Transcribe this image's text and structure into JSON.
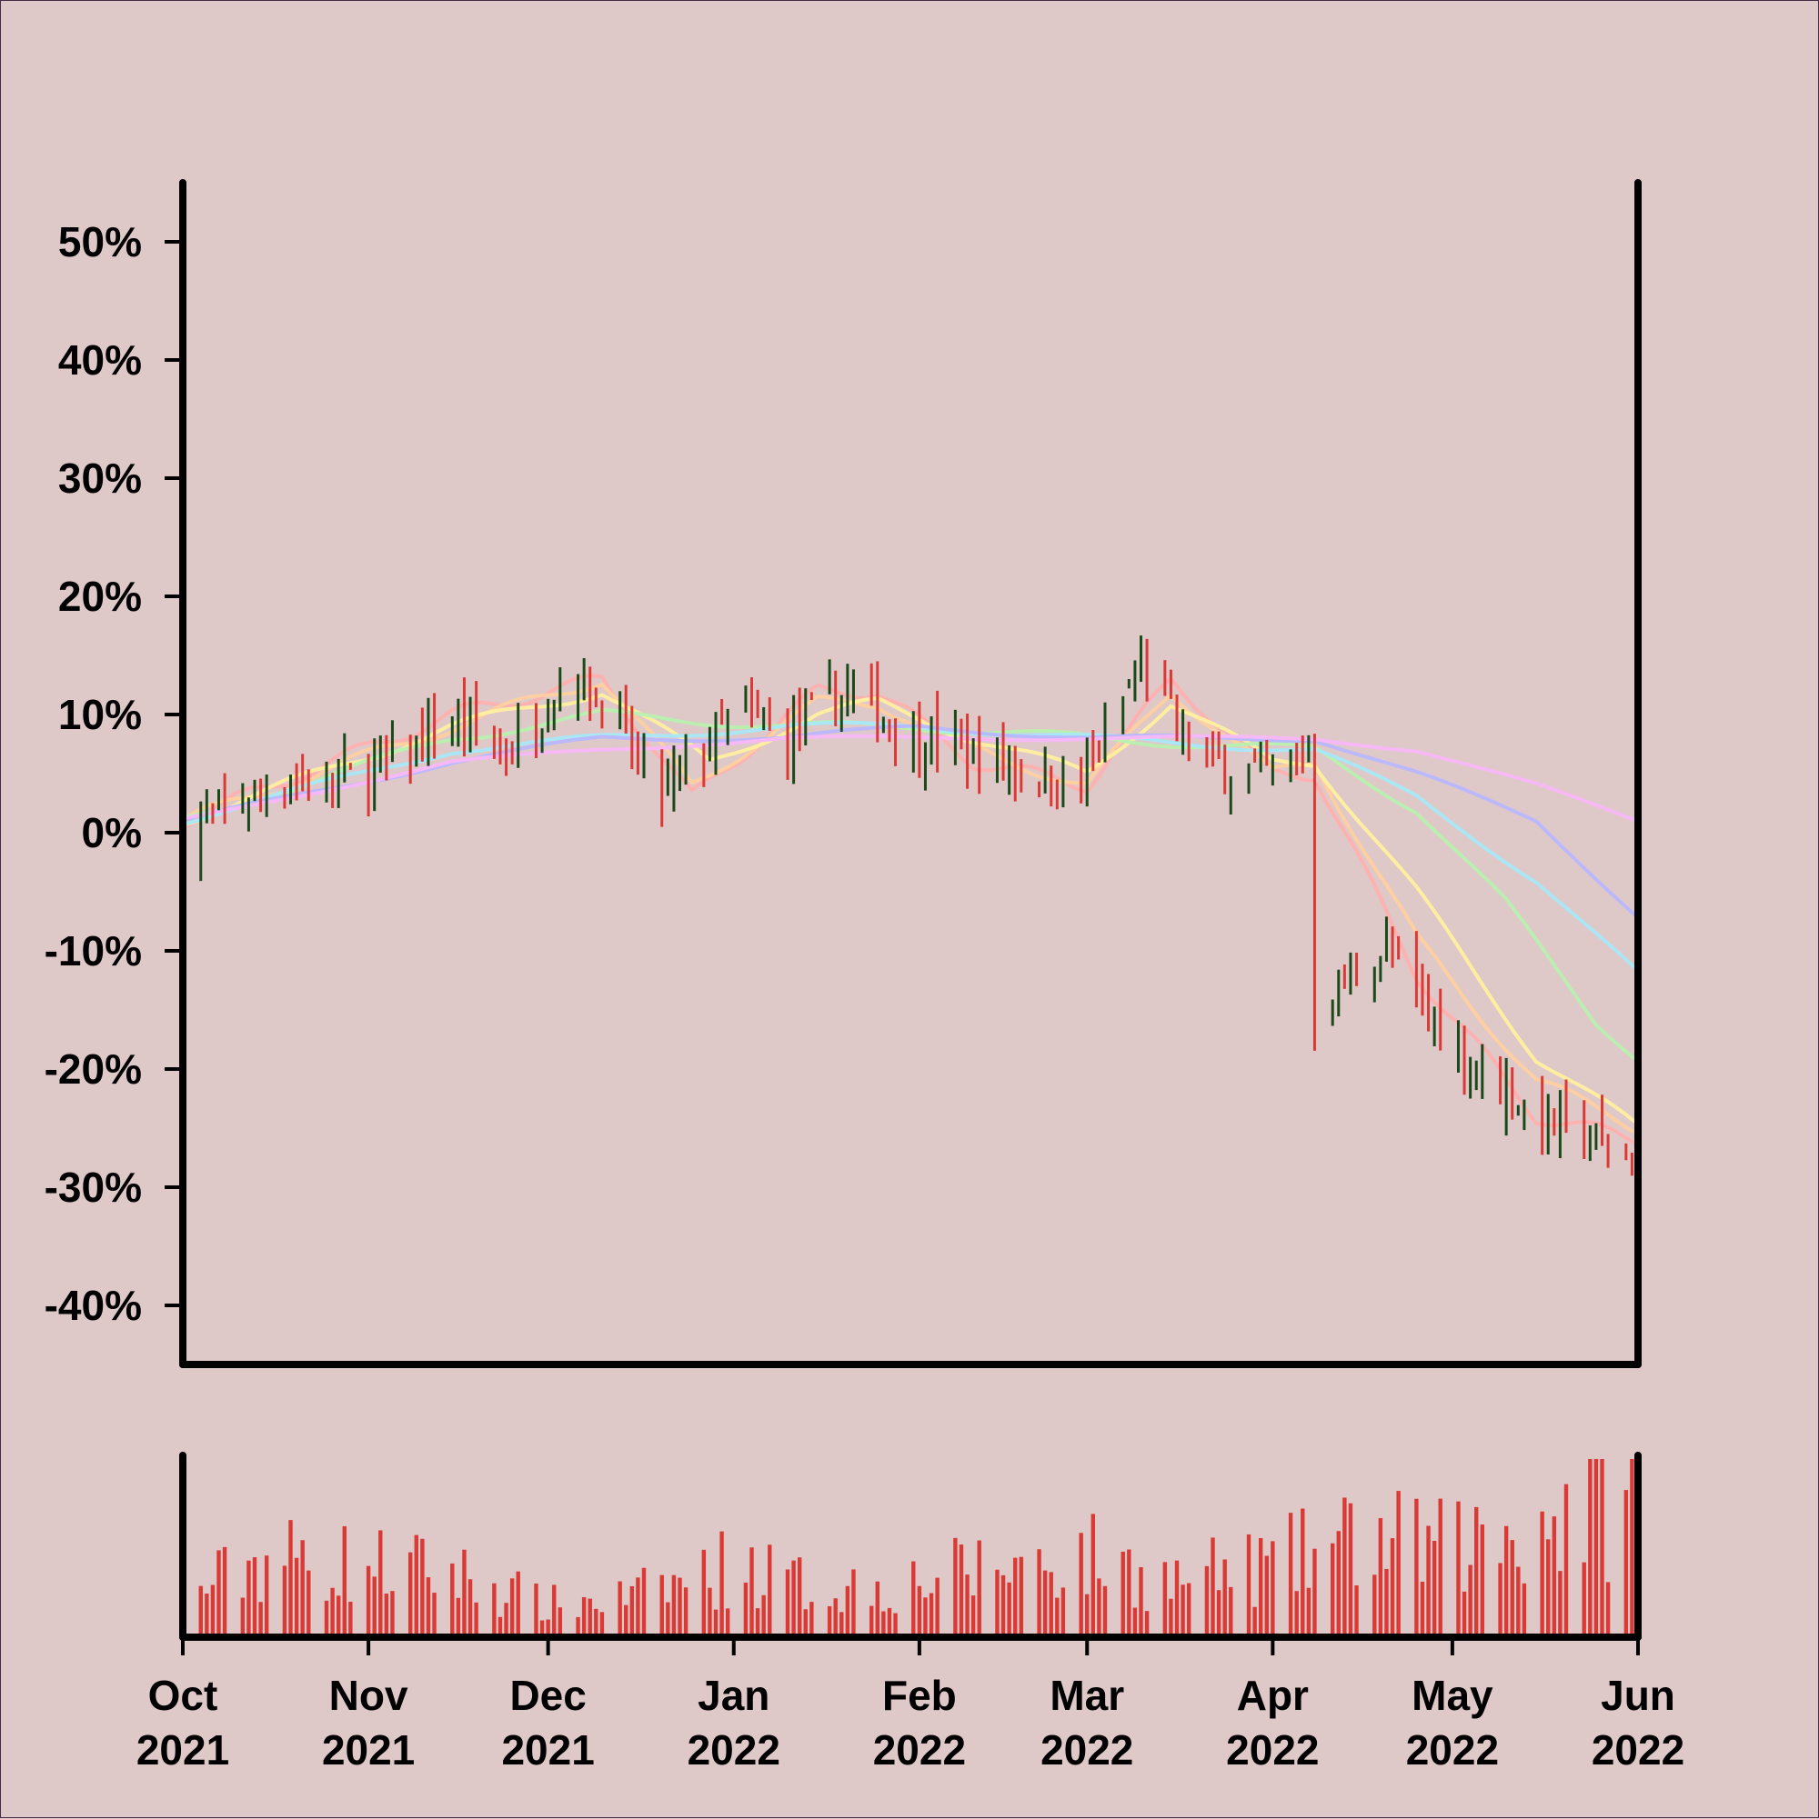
{
  "colors": {
    "background": "#dfc8c8",
    "axis": "#000000",
    "up_bar": "#1a4a1a",
    "down_bar": "#d93a35",
    "volume": "#d93a35",
    "ma_lines": [
      "#ffb0b0",
      "#ffd0a0",
      "#fff0a0",
      "#b8f0b0",
      "#a8e8f8",
      "#b8b8ff",
      "#f8b8f8"
    ]
  },
  "chart_data": {
    "type": "ohlc",
    "title": "",
    "xlabel": "",
    "ylabel": "",
    "y_unit": "percent change",
    "ylim": [
      -45,
      55
    ],
    "yticks": [
      "50%",
      "40%",
      "30%",
      "20%",
      "10%",
      "0%",
      "-10%",
      "-20%",
      "-30%",
      "-40%"
    ],
    "ytick_values": [
      50,
      40,
      30,
      20,
      10,
      0,
      -10,
      -20,
      -30,
      -40
    ],
    "xlim": [
      "2021-10-01",
      "2022-06-01"
    ],
    "xticks": [
      {
        "month": "Oct",
        "year": "2021",
        "date": "2021-10-01"
      },
      {
        "month": "Nov",
        "year": "2021",
        "date": "2021-11-01"
      },
      {
        "month": "Dec",
        "year": "2021",
        "date": "2021-12-01"
      },
      {
        "month": "Jan",
        "year": "2022",
        "date": "2022-01-01"
      },
      {
        "month": "Feb",
        "year": "2022",
        "date": "2022-02-01"
      },
      {
        "month": "Mar",
        "year": "2022",
        "date": "2022-03-01"
      },
      {
        "month": "Apr",
        "year": "2022",
        "date": "2022-04-01"
      },
      {
        "month": "May",
        "year": "2022",
        "date": "2022-05-01"
      },
      {
        "month": "Jun",
        "year": "2022",
        "date": "2022-06-01"
      }
    ],
    "close_trend": [
      {
        "date": "2021-10-01",
        "close": 0
      },
      {
        "date": "2021-10-15",
        "close": 4
      },
      {
        "date": "2021-11-01",
        "close": 5
      },
      {
        "date": "2021-11-15",
        "close": 9
      },
      {
        "date": "2021-11-25",
        "close": 7
      },
      {
        "date": "2021-12-05",
        "close": 14
      },
      {
        "date": "2021-12-10",
        "close": 11
      },
      {
        "date": "2021-12-20",
        "close": 3
      },
      {
        "date": "2022-01-01",
        "close": 10
      },
      {
        "date": "2022-01-10",
        "close": 8
      },
      {
        "date": "2022-01-20",
        "close": 12
      },
      {
        "date": "2022-02-01",
        "close": 8
      },
      {
        "date": "2022-02-15",
        "close": 6
      },
      {
        "date": "2022-02-28",
        "close": 4
      },
      {
        "date": "2022-03-10",
        "close": 14
      },
      {
        "date": "2022-03-20",
        "close": 6
      },
      {
        "date": "2022-04-01",
        "close": 5
      },
      {
        "date": "2022-04-07",
        "close": 7
      },
      {
        "date": "2022-04-08",
        "close": -15
      },
      {
        "date": "2022-04-20",
        "close": -10
      },
      {
        "date": "2022-05-01",
        "close": -18
      },
      {
        "date": "2022-05-15",
        "close": -24
      },
      {
        "date": "2022-05-25",
        "close": -26
      },
      {
        "date": "2022-06-01",
        "close": -28
      }
    ],
    "moving_averages": [
      {
        "points": [
          [
            "2021-10-01",
            1
          ],
          [
            "2021-11-15",
            10
          ],
          [
            "2021-12-10",
            13
          ],
          [
            "2021-12-25",
            3
          ],
          [
            "2022-01-15",
            12
          ],
          [
            "2022-01-25",
            12
          ],
          [
            "2022-02-10",
            6
          ],
          [
            "2022-03-01",
            4
          ],
          [
            "2022-03-15",
            13
          ],
          [
            "2022-04-01",
            5
          ],
          [
            "2022-04-08",
            5
          ],
          [
            "2022-04-25",
            -12
          ],
          [
            "2022-05-15",
            -24
          ],
          [
            "2022-06-01",
            -26
          ]
        ]
      },
      {
        "points": [
          [
            "2021-10-01",
            1
          ],
          [
            "2021-11-15",
            9
          ],
          [
            "2021-12-10",
            13
          ],
          [
            "2021-12-25",
            4
          ],
          [
            "2022-01-15",
            11
          ],
          [
            "2022-01-25",
            11
          ],
          [
            "2022-02-10",
            7
          ],
          [
            "2022-03-01",
            4
          ],
          [
            "2022-03-15",
            12
          ],
          [
            "2022-04-01",
            5
          ],
          [
            "2022-04-08",
            6
          ],
          [
            "2022-04-25",
            -9
          ],
          [
            "2022-05-15",
            -21
          ],
          [
            "2022-06-01",
            -25
          ]
        ]
      },
      {
        "points": [
          [
            "2021-10-01",
            1
          ],
          [
            "2021-11-15",
            9
          ],
          [
            "2021-12-10",
            12
          ],
          [
            "2021-12-28",
            6
          ],
          [
            "2022-01-15",
            10
          ],
          [
            "2022-01-25",
            11
          ],
          [
            "2022-02-10",
            8
          ],
          [
            "2022-03-01",
            5
          ],
          [
            "2022-03-15",
            11
          ],
          [
            "2022-04-01",
            6
          ],
          [
            "2022-04-08",
            6
          ],
          [
            "2022-04-25",
            -5
          ],
          [
            "2022-05-15",
            -19
          ],
          [
            "2022-06-01",
            -25
          ]
        ]
      },
      {
        "points": [
          [
            "2021-10-01",
            1
          ],
          [
            "2021-11-15",
            8
          ],
          [
            "2021-12-10",
            10
          ],
          [
            "2022-01-10",
            9
          ],
          [
            "2022-02-01",
            9
          ],
          [
            "2022-03-01",
            8
          ],
          [
            "2022-04-08",
            7
          ],
          [
            "2022-04-25",
            2
          ],
          [
            "2022-05-10",
            -6
          ],
          [
            "2022-05-25",
            -16
          ],
          [
            "2022-06-01",
            -19
          ]
        ]
      },
      {
        "points": [
          [
            "2021-10-01",
            1
          ],
          [
            "2021-11-15",
            7
          ],
          [
            "2021-12-10",
            8
          ],
          [
            "2022-01-10",
            9
          ],
          [
            "2022-02-01",
            9
          ],
          [
            "2022-03-01",
            8
          ],
          [
            "2022-04-08",
            7
          ],
          [
            "2022-04-25",
            3
          ],
          [
            "2022-05-15",
            -4
          ],
          [
            "2022-06-01",
            -12
          ]
        ]
      },
      {
        "points": [
          [
            "2021-10-01",
            1
          ],
          [
            "2021-11-15",
            6
          ],
          [
            "2021-12-10",
            8
          ],
          [
            "2022-01-10",
            8
          ],
          [
            "2022-02-01",
            9
          ],
          [
            "2022-03-01",
            8
          ],
          [
            "2022-04-08",
            8
          ],
          [
            "2022-04-25",
            5
          ],
          [
            "2022-05-15",
            1
          ],
          [
            "2022-06-01",
            -7
          ]
        ]
      },
      {
        "points": [
          [
            "2021-10-01",
            1
          ],
          [
            "2021-11-15",
            6
          ],
          [
            "2021-12-10",
            7
          ],
          [
            "2022-01-10",
            8
          ],
          [
            "2022-02-01",
            8
          ],
          [
            "2022-03-01",
            8
          ],
          [
            "2022-04-08",
            8
          ],
          [
            "2022-04-25",
            7
          ],
          [
            "2022-05-15",
            4
          ],
          [
            "2022-06-01",
            1
          ]
        ]
      }
    ],
    "volume_trend": [
      {
        "date": "2021-10-01",
        "relative": 0.25
      },
      {
        "date": "2021-10-15",
        "relative": 0.5
      },
      {
        "date": "2021-11-01",
        "relative": 0.45
      },
      {
        "date": "2021-11-15",
        "relative": 0.4
      },
      {
        "date": "2021-12-01",
        "relative": 0.2
      },
      {
        "date": "2021-12-15",
        "relative": 0.25
      },
      {
        "date": "2022-01-01",
        "relative": 0.45
      },
      {
        "date": "2022-01-15",
        "relative": 0.3
      },
      {
        "date": "2022-02-01",
        "relative": 0.35
      },
      {
        "date": "2022-02-15",
        "relative": 0.45
      },
      {
        "date": "2022-03-01",
        "relative": 0.5
      },
      {
        "date": "2022-03-15",
        "relative": 0.35
      },
      {
        "date": "2022-04-01",
        "relative": 0.45
      },
      {
        "date": "2022-04-15",
        "relative": 0.6
      },
      {
        "date": "2022-05-01",
        "relative": 0.55
      },
      {
        "date": "2022-05-15",
        "relative": 0.7
      },
      {
        "date": "2022-06-01",
        "relative": 0.95
      }
    ]
  }
}
